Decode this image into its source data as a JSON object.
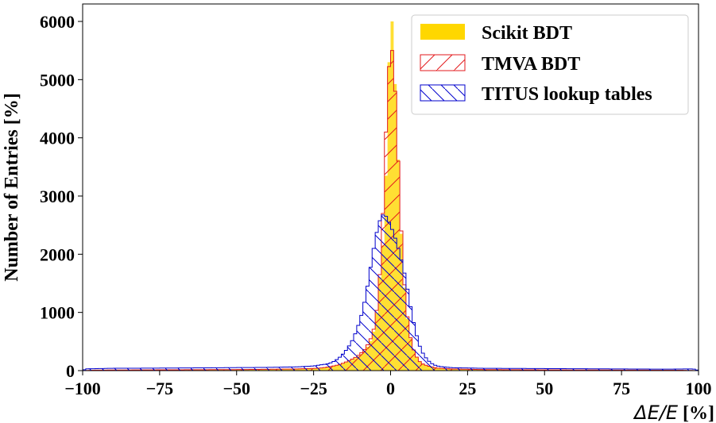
{
  "chart_data": {
    "type": "histogram",
    "xlabel": {
      "main": "ΔE/E",
      "unit": "[%]"
    },
    "ylabel": "Number of Entries [%]",
    "xlim": [
      -100,
      100
    ],
    "ylim": [
      0,
      6300
    ],
    "x_ticks": [
      -100,
      -75,
      -50,
      -25,
      0,
      25,
      50,
      75,
      100
    ],
    "y_ticks": [
      0,
      1000,
      2000,
      3000,
      4000,
      5000,
      6000
    ],
    "legend_position": "top-right",
    "bins": {
      "start": -100,
      "width": 1
    },
    "series": [
      {
        "name": "Scikit BDT",
        "color": "#FFD700",
        "style": "filled",
        "profile": [
          [
            -100,
            0
          ],
          [
            -96,
            8
          ],
          [
            -90,
            10
          ],
          [
            -80,
            12
          ],
          [
            -70,
            14
          ],
          [
            -60,
            15
          ],
          [
            -50,
            17
          ],
          [
            -40,
            20
          ],
          [
            -30,
            28
          ],
          [
            -25,
            35
          ],
          [
            -22,
            45
          ],
          [
            -20,
            60
          ],
          [
            -18,
            80
          ],
          [
            -16,
            110
          ],
          [
            -14,
            150
          ],
          [
            -12,
            200
          ],
          [
            -10,
            260
          ],
          [
            -8,
            360
          ],
          [
            -6,
            560
          ],
          [
            -5,
            780
          ],
          [
            -4,
            1200
          ],
          [
            -3,
            2000
          ],
          [
            -2,
            3300
          ],
          [
            -1,
            4900
          ],
          [
            0,
            5700
          ],
          [
            1,
            5550
          ],
          [
            2,
            4300
          ],
          [
            3,
            2950
          ],
          [
            4,
            1750
          ],
          [
            5,
            1100
          ],
          [
            6,
            680
          ],
          [
            7,
            420
          ],
          [
            8,
            270
          ],
          [
            9,
            180
          ],
          [
            10,
            120
          ],
          [
            12,
            75
          ],
          [
            15,
            40
          ],
          [
            20,
            25
          ],
          [
            30,
            15
          ],
          [
            50,
            10
          ],
          [
            75,
            8
          ],
          [
            95,
            5
          ],
          [
            100,
            0
          ]
        ],
        "overrides": {
          "0": 6000,
          "-3": 2150,
          "-2": 3350
        }
      },
      {
        "name": "TMVA BDT",
        "color": "#E31A1C",
        "style": "hatch-forward",
        "profile": [
          [
            -100,
            0
          ],
          [
            -96,
            8
          ],
          [
            -90,
            10
          ],
          [
            -80,
            12
          ],
          [
            -70,
            14
          ],
          [
            -60,
            16
          ],
          [
            -50,
            18
          ],
          [
            -40,
            22
          ],
          [
            -30,
            30
          ],
          [
            -25,
            38
          ],
          [
            -22,
            48
          ],
          [
            -20,
            65
          ],
          [
            -18,
            85
          ],
          [
            -16,
            115
          ],
          [
            -14,
            160
          ],
          [
            -12,
            210
          ],
          [
            -10,
            280
          ],
          [
            -8,
            390
          ],
          [
            -6,
            600
          ],
          [
            -5,
            820
          ],
          [
            -4,
            1250
          ],
          [
            -3,
            2050
          ],
          [
            -2,
            3350
          ],
          [
            -1,
            4850
          ],
          [
            0,
            5600
          ],
          [
            1,
            5400
          ],
          [
            2,
            4200
          ],
          [
            3,
            3000
          ],
          [
            4,
            1800
          ],
          [
            5,
            1150
          ],
          [
            6,
            700
          ],
          [
            7,
            430
          ],
          [
            8,
            280
          ],
          [
            9,
            185
          ],
          [
            10,
            125
          ],
          [
            12,
            80
          ],
          [
            15,
            45
          ],
          [
            20,
            28
          ],
          [
            30,
            18
          ],
          [
            50,
            12
          ],
          [
            75,
            9
          ],
          [
            95,
            6
          ],
          [
            100,
            0
          ]
        ],
        "overrides": {}
      },
      {
        "name": "TITUS lookup tables",
        "color": "#0000CC",
        "style": "hatch-backward",
        "profile": [
          [
            -100,
            0
          ],
          [
            -99,
            30
          ],
          [
            -95,
            35
          ],
          [
            -90,
            40
          ],
          [
            -80,
            42
          ],
          [
            -70,
            45
          ],
          [
            -60,
            48
          ],
          [
            -50,
            52
          ],
          [
            -40,
            55
          ],
          [
            -30,
            65
          ],
          [
            -25,
            80
          ],
          [
            -20,
            120
          ],
          [
            -18,
            170
          ],
          [
            -16,
            250
          ],
          [
            -14,
            380
          ],
          [
            -12,
            560
          ],
          [
            -10,
            850
          ],
          [
            -9,
            1050
          ],
          [
            -8,
            1300
          ],
          [
            -7,
            1600
          ],
          [
            -6,
            1950
          ],
          [
            -5,
            2250
          ],
          [
            -4,
            2500
          ],
          [
            -3,
            2650
          ],
          [
            -2,
            2700
          ],
          [
            -1,
            2600
          ],
          [
            0,
            2500
          ],
          [
            1,
            2350
          ],
          [
            2,
            2200
          ],
          [
            3,
            2000
          ],
          [
            4,
            1800
          ],
          [
            5,
            1550
          ],
          [
            6,
            1250
          ],
          [
            7,
            950
          ],
          [
            8,
            700
          ],
          [
            9,
            500
          ],
          [
            10,
            340
          ],
          [
            12,
            180
          ],
          [
            14,
            100
          ],
          [
            16,
            70
          ],
          [
            20,
            50
          ],
          [
            30,
            40
          ],
          [
            50,
            35
          ],
          [
            70,
            30
          ],
          [
            90,
            25
          ],
          [
            98,
            30
          ],
          [
            99,
            20
          ],
          [
            100,
            0
          ]
        ],
        "overrides": {}
      }
    ]
  }
}
